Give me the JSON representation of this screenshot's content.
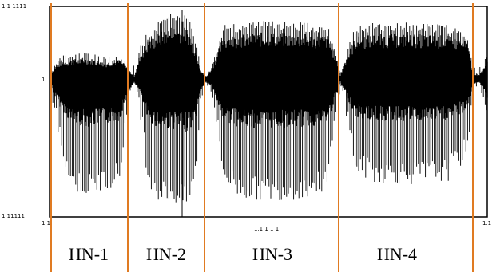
{
  "figure": {
    "axis_ticks": {
      "y_top": "1.1 1111",
      "y_mid": "1",
      "y_bottom": "1.11111",
      "x_left": "1.1",
      "x_mid": "1.1 1 1 1",
      "x_right": "1.1"
    },
    "segments": [
      {
        "label": "HN-1"
      },
      {
        "label": "HN-2"
      },
      {
        "label": "HN-3"
      },
      {
        "label": "HN-4"
      }
    ],
    "colors": {
      "waveform": "#000000",
      "boundary": "#e07b22",
      "frame": "#000000"
    }
  }
}
